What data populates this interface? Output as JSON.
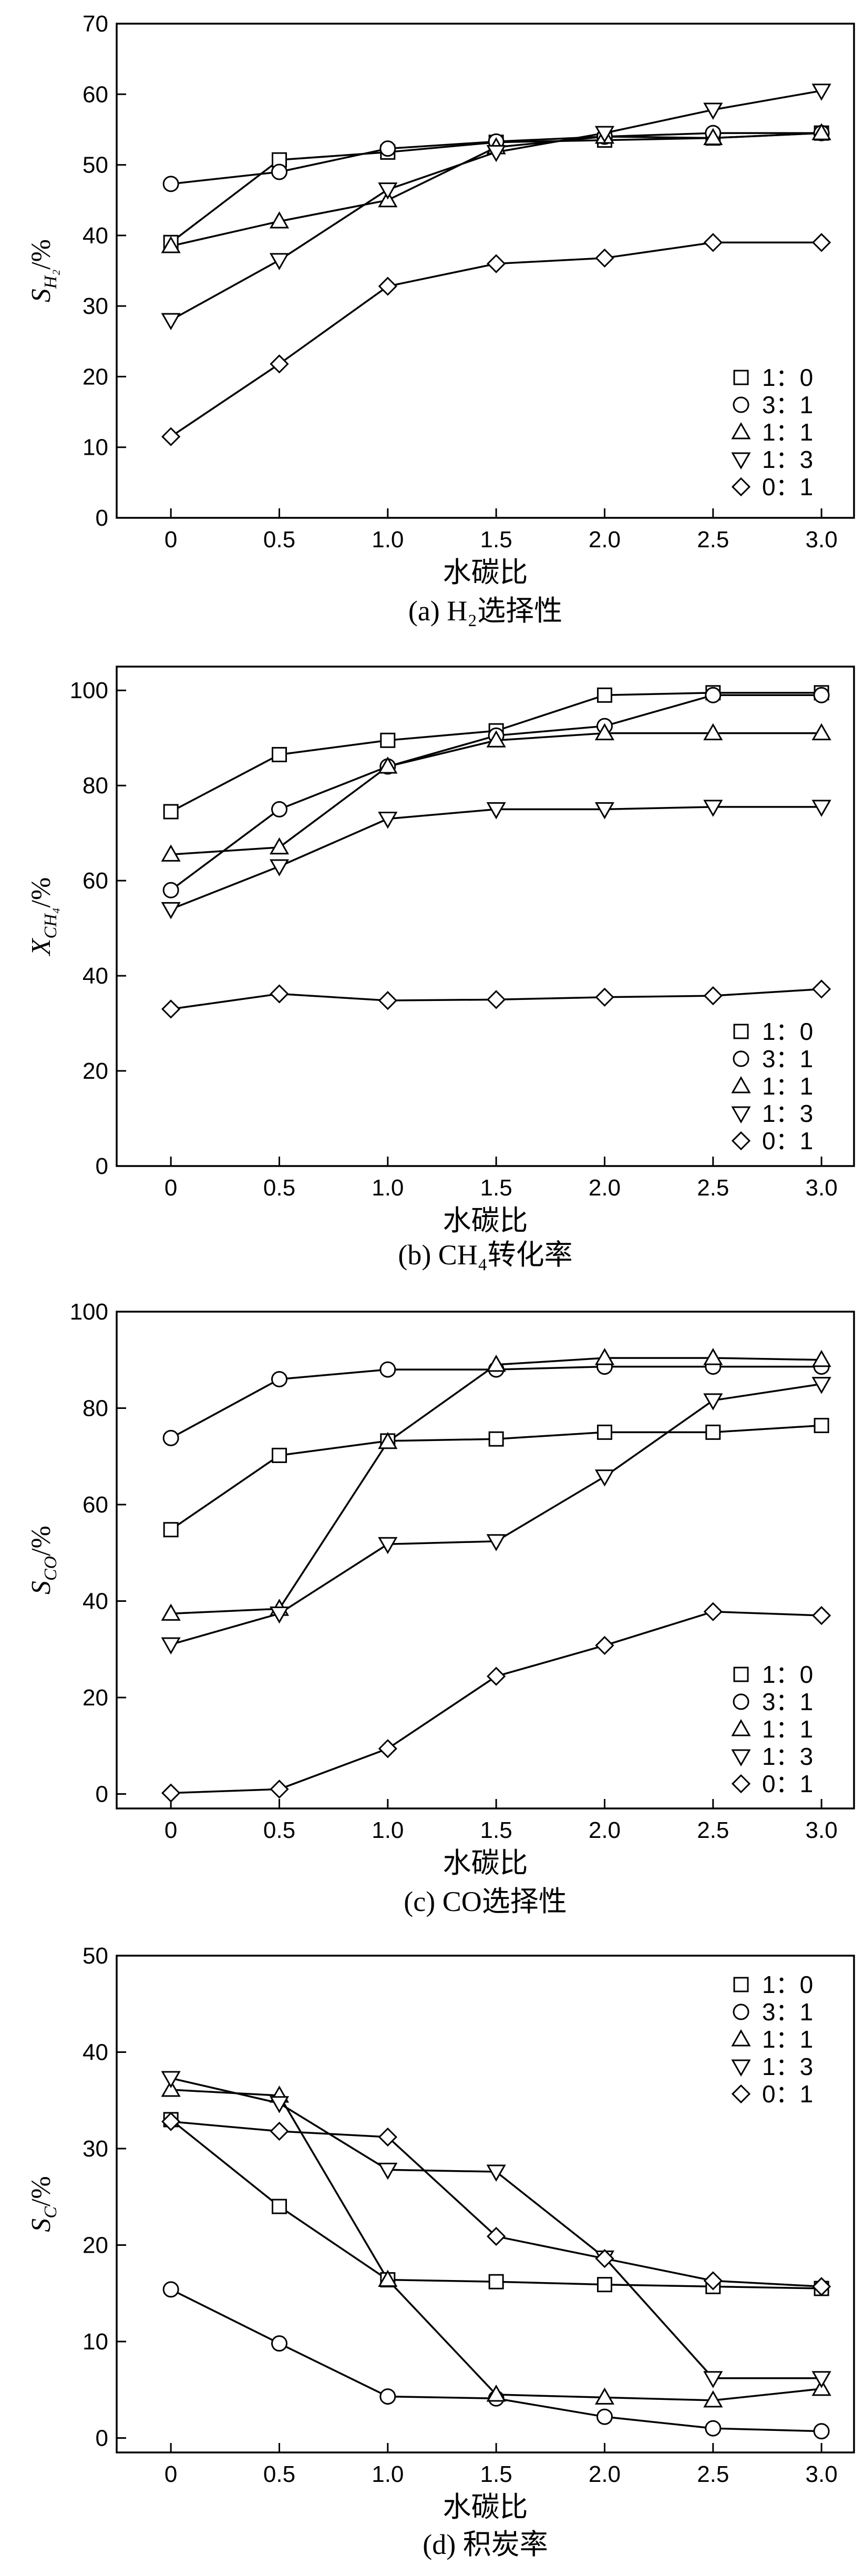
{
  "legend_labels": [
    "1：0",
    "3：1",
    "1：1",
    "1：3",
    "0：1"
  ],
  "chart_data": [
    {
      "type": "line",
      "caption": "(a) H₂选择性",
      "xlabel": "水碳比",
      "ylabel": {
        "main": "S",
        "sub": "H₂",
        "suffix": "/%"
      },
      "xlim": [
        -0.25,
        3.15
      ],
      "ylim": [
        0,
        70
      ],
      "x_ticks": [
        0,
        0.5,
        1.0,
        1.5,
        2.0,
        2.5,
        3.0
      ],
      "x_tick_labels": [
        "0",
        "0.5",
        "1.0",
        "1.5",
        "2.0",
        "2.5",
        "3.0"
      ],
      "y_ticks": [
        0,
        10,
        20,
        30,
        40,
        50,
        60,
        70
      ],
      "y_tick_labels": [
        "0",
        "10",
        "20",
        "30",
        "40",
        "50",
        "60",
        "70"
      ],
      "legend_position": "bottom-right",
      "x": [
        0,
        0.5,
        1.0,
        1.5,
        2.0,
        2.5,
        3.0
      ],
      "series": [
        {
          "name": "1：0",
          "marker": "square",
          "values": [
            39.0,
            50.7,
            51.8,
            53.2,
            53.5,
            53.8,
            54.5
          ]
        },
        {
          "name": "3：1",
          "marker": "circle",
          "values": [
            47.3,
            49.0,
            52.3,
            53.3,
            54.0,
            54.5,
            54.5
          ]
        },
        {
          "name": "1：1",
          "marker": "triangle-up",
          "values": [
            38.5,
            42.0,
            45.0,
            52.5,
            54.0,
            53.8,
            54.5
          ]
        },
        {
          "name": "1：3",
          "marker": "triangle-down",
          "values": [
            28.0,
            36.5,
            46.5,
            51.8,
            54.5,
            57.8,
            60.5
          ]
        },
        {
          "name": "0：1",
          "marker": "diamond",
          "values": [
            11.5,
            21.8,
            32.8,
            36.0,
            36.8,
            39.0,
            39.0
          ]
        }
      ]
    },
    {
      "type": "line",
      "caption": "(b) CH₄转化率",
      "xlabel": "水碳比",
      "ylabel": {
        "main": "X",
        "sub": "CH₄",
        "suffix": "/%"
      },
      "xlim": [
        -0.25,
        3.15
      ],
      "ylim": [
        0,
        105
      ],
      "x_ticks": [
        0,
        0.5,
        1.0,
        1.5,
        2.0,
        2.5,
        3.0
      ],
      "x_tick_labels": [
        "0",
        "0.5",
        "1.0",
        "1.5",
        "2.0",
        "2.5",
        "3.0"
      ],
      "y_ticks": [
        0,
        20,
        40,
        60,
        80,
        100
      ],
      "y_tick_labels": [
        "0",
        "20",
        "40",
        "60",
        "80",
        "100"
      ],
      "legend_position": "bottom-right",
      "x": [
        0,
        0.5,
        1.0,
        1.5,
        2.0,
        2.5,
        3.0
      ],
      "series": [
        {
          "name": "1：0",
          "marker": "square",
          "values": [
            74.5,
            86.5,
            89.5,
            91.5,
            99.0,
            99.5,
            99.5
          ]
        },
        {
          "name": "3：1",
          "marker": "circle",
          "values": [
            58.0,
            75.0,
            84.0,
            90.5,
            92.5,
            99.0,
            99.0
          ]
        },
        {
          "name": "1：1",
          "marker": "triangle-up",
          "values": [
            65.5,
            67.0,
            84.0,
            89.5,
            91.0,
            91.0,
            91.0
          ]
        },
        {
          "name": "1：3",
          "marker": "triangle-down",
          "values": [
            54.0,
            63.0,
            73.0,
            75.0,
            75.0,
            75.5,
            75.5
          ]
        },
        {
          "name": "0：1",
          "marker": "diamond",
          "values": [
            33.0,
            36.2,
            34.8,
            35.0,
            35.5,
            35.8,
            37.2
          ]
        }
      ]
    },
    {
      "type": "line",
      "caption": "(c) CO选择性",
      "xlabel": "水碳比",
      "ylabel": {
        "main": "S",
        "sub": "CO",
        "suffix": "/%"
      },
      "xlim": [
        -0.25,
        3.15
      ],
      "ylim": [
        -3,
        100
      ],
      "x_ticks": [
        0,
        0.5,
        1.0,
        1.5,
        2.0,
        2.5,
        3.0
      ],
      "x_tick_labels": [
        "0",
        "0.5",
        "1.0",
        "1.5",
        "2.0",
        "2.5",
        "3.0"
      ],
      "y_ticks": [
        0,
        20,
        40,
        60,
        80,
        100
      ],
      "y_tick_labels": [
        "0",
        "20",
        "40",
        "60",
        "80",
        "100"
      ],
      "legend_position": "bottom-right",
      "x": [
        0,
        0.5,
        1.0,
        1.5,
        2.0,
        2.5,
        3.0
      ],
      "series": [
        {
          "name": "1：0",
          "marker": "square",
          "values": [
            54.8,
            70.2,
            73.2,
            73.6,
            75.0,
            75.0,
            76.4
          ]
        },
        {
          "name": "3：1",
          "marker": "circle",
          "values": [
            73.8,
            86.0,
            88.0,
            88.0,
            88.6,
            88.6,
            88.6
          ]
        },
        {
          "name": "1：1",
          "marker": "triangle-up",
          "values": [
            37.4,
            38.4,
            73.0,
            89.0,
            90.4,
            90.4,
            90.0
          ]
        },
        {
          "name": "1：3",
          "marker": "triangle-down",
          "values": [
            31.0,
            37.4,
            51.8,
            52.4,
            65.8,
            81.6,
            85.0
          ]
        },
        {
          "name": "0：1",
          "marker": "diamond",
          "values": [
            0.2,
            1.0,
            9.4,
            24.4,
            30.8,
            37.8,
            37.0
          ]
        }
      ]
    },
    {
      "type": "line",
      "caption": "(d) 积炭率",
      "xlabel": "水碳比",
      "ylabel": {
        "main": "S",
        "sub": "C",
        "suffix": "/%"
      },
      "xlim": [
        -0.25,
        3.15
      ],
      "ylim": [
        -1.5,
        50
      ],
      "x_ticks": [
        0,
        0.5,
        1.0,
        1.5,
        2.0,
        2.5,
        3.0
      ],
      "x_tick_labels": [
        "0",
        "0.5",
        "1.0",
        "1.5",
        "2.0",
        "2.5",
        "3.0"
      ],
      "y_ticks": [
        0,
        10,
        20,
        30,
        40,
        50
      ],
      "y_tick_labels": [
        "0",
        "10",
        "20",
        "30",
        "40",
        "50"
      ],
      "legend_position": "top-right",
      "x": [
        0,
        0.5,
        1.0,
        1.5,
        2.0,
        2.5,
        3.0
      ],
      "series": [
        {
          "name": "1：0",
          "marker": "square",
          "values": [
            33.0,
            24.0,
            16.4,
            16.2,
            15.9,
            15.7,
            15.5
          ]
        },
        {
          "name": "3：1",
          "marker": "circle",
          "values": [
            15.4,
            9.8,
            4.3,
            4.1,
            2.2,
            1.0,
            0.7
          ]
        },
        {
          "name": "1：1",
          "marker": "triangle-up",
          "values": [
            36.1,
            35.5,
            16.4,
            4.5,
            4.2,
            3.9,
            5.1
          ]
        },
        {
          "name": "1：3",
          "marker": "triangle-down",
          "values": [
            37.3,
            34.7,
            27.8,
            27.6,
            18.7,
            6.2,
            6.2
          ]
        },
        {
          "name": "0：1",
          "marker": "diamond",
          "values": [
            32.8,
            31.8,
            31.2,
            20.9,
            18.6,
            16.3,
            15.7
          ]
        }
      ]
    }
  ]
}
